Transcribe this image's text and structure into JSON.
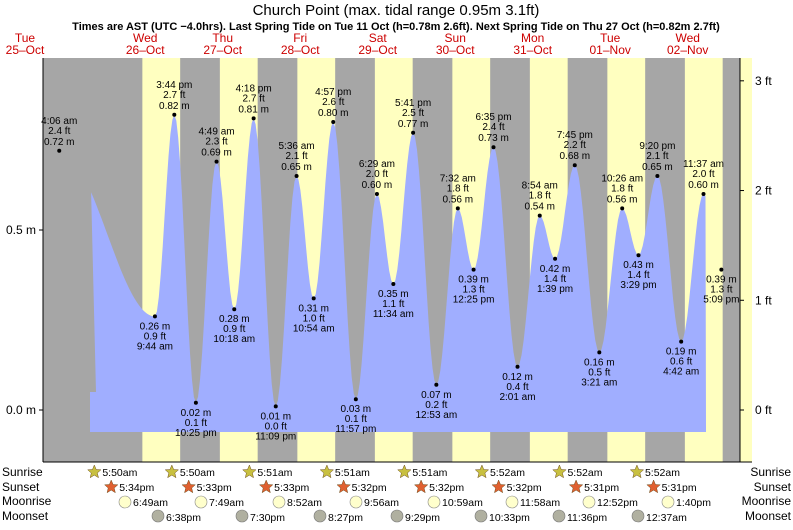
{
  "title": "Church Point (max. tidal range 0.95m 3.1ft)",
  "subtitle": "Times are AST (UTC −4.0hrs). Last Spring Tide on Tue 11 Oct (h=0.78m 2.6ft). Next Spring Tide on Thu 27 Oct (h=0.82m 2.7ft)",
  "colors": {
    "night": "#a6a6a6",
    "day": "#ffffc0",
    "tide_fill": "#a0aeff",
    "day_header": "#cc0000",
    "sun_star": "#c8c040",
    "sunset_star": "#e06030",
    "moon": "#ffffcc",
    "moonset": "#b0b0a0"
  },
  "days": [
    {
      "dow": "Tue",
      "date": "25–Oct"
    },
    {
      "dow": "Wed",
      "date": "26–Oct"
    },
    {
      "dow": "Thu",
      "date": "27–Oct"
    },
    {
      "dow": "Fri",
      "date": "28–Oct"
    },
    {
      "dow": "Sat",
      "date": "29–Oct"
    },
    {
      "dow": "Sun",
      "date": "30–Oct"
    },
    {
      "dow": "Mon",
      "date": "31–Oct"
    },
    {
      "dow": "Tue",
      "date": "01–Nov"
    },
    {
      "dow": "Wed",
      "date": "02–Nov"
    }
  ],
  "row_labels": {
    "sunrise": "Sunrise",
    "sunset": "Sunset",
    "moonrise": "Moonrise",
    "moonset": "Moonset"
  },
  "sunrise": [
    "5:50am",
    "5:50am",
    "5:51am",
    "5:51am",
    "5:51am",
    "5:52am",
    "5:52am",
    "5:52am"
  ],
  "sunset": [
    "5:34pm",
    "5:33pm",
    "5:33pm",
    "5:32pm",
    "5:32pm",
    "5:32pm",
    "5:31pm",
    "5:31pm"
  ],
  "moonrise": [
    "6:49am",
    "7:49am",
    "8:52am",
    "9:56am",
    "10:59am",
    "11:58am",
    "12:52pm",
    "1:40pm"
  ],
  "moonset": [
    "6:38pm",
    "7:30pm",
    "8:27pm",
    "9:29pm",
    "10:33pm",
    "11:36pm",
    "12:37am"
  ],
  "chart_data": {
    "type": "area",
    "title": "Church Point (max. tidal range 0.95m 3.1ft)",
    "y_left_unit": "m",
    "y_right_unit": "ft",
    "y_left_ticks": [
      "0.0 m",
      "0.5 m"
    ],
    "y_right_ticks": [
      "0 ft",
      "1 ft",
      "2 ft",
      "3 ft"
    ],
    "ylim_m": [
      -0.07,
      0.95
    ],
    "extremes": [
      {
        "type": "high",
        "day": 0,
        "time": "4:06 am",
        "h": 0.72,
        "ft": "2.4 ft",
        "m": "0.72 m"
      },
      {
        "type": "low",
        "day": 1,
        "time": "9:44 am",
        "h": 0.26,
        "ft": "0.9 ft",
        "m": "0.26 m"
      },
      {
        "type": "high",
        "day": 1,
        "time": "3:44 pm",
        "h": 0.82,
        "ft": "2.7 ft",
        "m": "0.82 m"
      },
      {
        "type": "low",
        "day": 1,
        "time": "10:25 pm",
        "h": 0.02,
        "ft": "0.1 ft",
        "m": "0.02 m"
      },
      {
        "type": "high",
        "day": 2,
        "time": "4:49 am",
        "h": 0.69,
        "ft": "2.3 ft",
        "m": "0.69 m"
      },
      {
        "type": "low",
        "day": 2,
        "time": "10:18 am",
        "h": 0.28,
        "ft": "0.9 ft",
        "m": "0.28 m"
      },
      {
        "type": "high",
        "day": 2,
        "time": "4:18 pm",
        "h": 0.81,
        "ft": "2.7 ft",
        "m": "0.81 m"
      },
      {
        "type": "low",
        "day": 2,
        "time": "11:09 pm",
        "h": 0.01,
        "ft": "0.0 ft",
        "m": "0.01 m"
      },
      {
        "type": "high",
        "day": 3,
        "time": "5:36 am",
        "h": 0.65,
        "ft": "2.1 ft",
        "m": "0.65 m"
      },
      {
        "type": "low",
        "day": 3,
        "time": "10:54 am",
        "h": 0.31,
        "ft": "1.0 ft",
        "m": "0.31 m"
      },
      {
        "type": "high",
        "day": 3,
        "time": "4:57 pm",
        "h": 0.8,
        "ft": "2.6 ft",
        "m": "0.80 m"
      },
      {
        "type": "low",
        "day": 3,
        "time": "11:57 pm",
        "h": 0.03,
        "ft": "0.1 ft",
        "m": "0.03 m"
      },
      {
        "type": "high",
        "day": 4,
        "time": "6:29 am",
        "h": 0.6,
        "ft": "2.0 ft",
        "m": "0.60 m"
      },
      {
        "type": "low",
        "day": 4,
        "time": "11:34 am",
        "h": 0.35,
        "ft": "1.1 ft",
        "m": "0.35 m"
      },
      {
        "type": "high",
        "day": 4,
        "time": "5:41 pm",
        "h": 0.77,
        "ft": "2.5 ft",
        "m": "0.77 m"
      },
      {
        "type": "low",
        "day": 5,
        "time": "12:53 am",
        "h": 0.07,
        "ft": "0.2 ft",
        "m": "0.07 m"
      },
      {
        "type": "high",
        "day": 5,
        "time": "7:32 am",
        "h": 0.56,
        "ft": "1.8 ft",
        "m": "0.56 m"
      },
      {
        "type": "low",
        "day": 5,
        "time": "12:25 pm",
        "h": 0.39,
        "ft": "1.3 ft",
        "m": "0.39 m"
      },
      {
        "type": "high",
        "day": 5,
        "time": "6:35 pm",
        "h": 0.73,
        "ft": "2.4 ft",
        "m": "0.73 m"
      },
      {
        "type": "low",
        "day": 6,
        "time": "2:01 am",
        "h": 0.12,
        "ft": "0.4 ft",
        "m": "0.12 m"
      },
      {
        "type": "high",
        "day": 6,
        "time": "8:54 am",
        "h": 0.54,
        "ft": "1.8 ft",
        "m": "0.54 m"
      },
      {
        "type": "low",
        "day": 6,
        "time": "1:39 pm",
        "h": 0.42,
        "ft": "1.4 ft",
        "m": "0.42 m"
      },
      {
        "type": "high",
        "day": 6,
        "time": "7:45 pm",
        "h": 0.68,
        "ft": "2.2 ft",
        "m": "0.68 m"
      },
      {
        "type": "low",
        "day": 7,
        "time": "3:21 am",
        "h": 0.16,
        "ft": "0.5 ft",
        "m": "0.16 m"
      },
      {
        "type": "high",
        "day": 7,
        "time": "10:26 am",
        "h": 0.56,
        "ft": "1.8 ft",
        "m": "0.56 m"
      },
      {
        "type": "low",
        "day": 7,
        "time": "3:29 pm",
        "h": 0.43,
        "ft": "1.4 ft",
        "m": "0.43 m"
      },
      {
        "type": "high",
        "day": 7,
        "time": "9:20 pm",
        "h": 0.65,
        "ft": "2.1 ft",
        "m": "0.65 m"
      },
      {
        "type": "low",
        "day": 8,
        "time": "4:42 am",
        "h": 0.19,
        "ft": "0.6 ft",
        "m": "0.19 m"
      },
      {
        "type": "high",
        "day": 8,
        "time": "11:37 am",
        "h": 0.6,
        "ft": "2.0 ft",
        "m": "0.60 m"
      },
      {
        "type": "low",
        "day": 8,
        "time": "5:09 pm",
        "h": 0.39,
        "ft": "1.3 ft",
        "m": "0.39 m"
      }
    ]
  }
}
